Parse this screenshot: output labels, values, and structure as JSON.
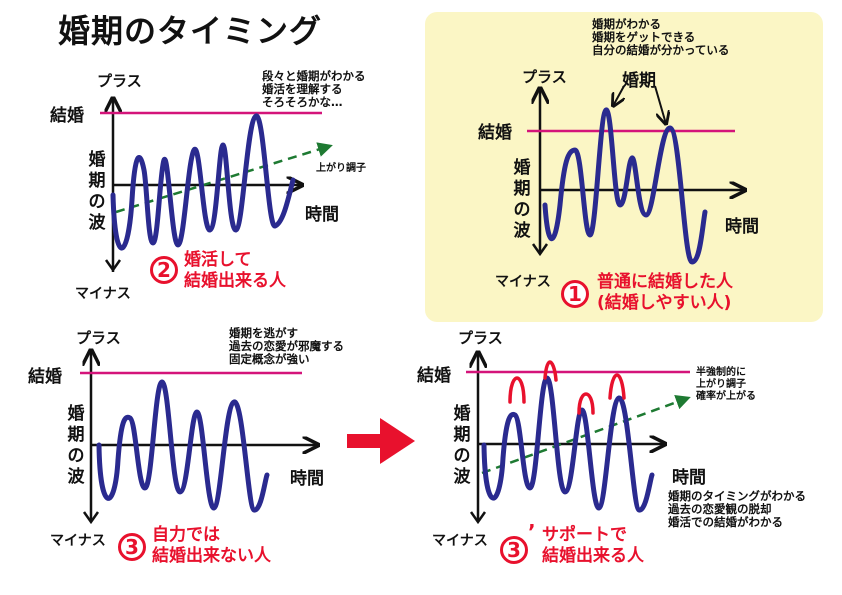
{
  "title": "婚期のタイミング",
  "axis": {
    "plus": "プラス",
    "minus": "マイナス",
    "marriage": "結婚",
    "time": "時間",
    "wave": [
      "婚",
      "期",
      "の",
      "波"
    ]
  },
  "panel1": {
    "number": "1",
    "caption_line1": "普通に結婚した人",
    "caption_line2": "(結婚しやすい人)",
    "peak_label": "婚期",
    "notes": [
      "婚期がわかる",
      "婚期をゲットできる",
      "自分の結婚が分かっている"
    ]
  },
  "panel2": {
    "number": "2",
    "caption_line1": "婚活して",
    "caption_line2": "結婚出来る人",
    "notes": [
      "段々と婚期がわかる",
      "婚活を理解する",
      "そろそろかな…"
    ],
    "trend_label": "上がり調子"
  },
  "panel3": {
    "number": "3",
    "caption_line1": "自力では",
    "caption_line2": "結婚出来ない人",
    "notes": [
      "婚期を逃がす",
      "過去の恋愛が邪魔する",
      "固定概念が強い"
    ]
  },
  "panel4": {
    "number": "3",
    "prime": "’",
    "caption_line1": "サポートで",
    "caption_line2": "結婚出来る人",
    "trend_notes": [
      "半強制的に",
      "上がり調子",
      "確率が上がる"
    ],
    "notes": [
      "婚期のタイミングがわかる",
      "過去の恋愛観の脱却",
      "婚活での結婚がわかる"
    ]
  },
  "colors": {
    "wave": "#2a2a8f",
    "marriage_line": "#d4147a",
    "accent_red": "#e8112d",
    "trend": "#1e7a32",
    "panel_bg": "#fbf6c5"
  }
}
